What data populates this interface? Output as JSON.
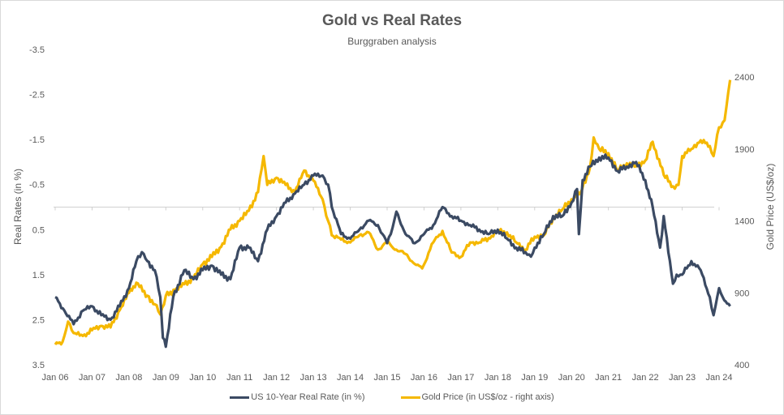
{
  "chart_data": {
    "type": "line",
    "title": "Gold vs Real Rates",
    "subtitle": "Burggraben analysis",
    "xlabel": "",
    "ylabel_left": "Real Rates (in %)",
    "ylabel_right": "Gold Price (US$/oz)",
    "x_ticks": [
      "Jan 06",
      "Jan 07",
      "Jan 08",
      "Jan 09",
      "Jan 10",
      "Jan 11",
      "Jan 12",
      "Jan 13",
      "Jan 14",
      "Jan 15",
      "Jan 16",
      "Jan 17",
      "Jan 18",
      "Jan 19",
      "Jan 20",
      "Jan 21",
      "Jan 22",
      "Jan 23",
      "Jan 24"
    ],
    "y_left_ticks": [
      "-3.5",
      "-2.5",
      "-1.5",
      "-0.5",
      "0.5",
      "1.5",
      "2.5",
      "3.5"
    ],
    "y_left_range": [
      -3.5,
      3.5
    ],
    "y_left_inverted": true,
    "y_right_ticks": [
      "2400",
      "1900",
      "1400",
      "900",
      "400"
    ],
    "y_right_range": [
      400,
      2400
    ],
    "grid": false,
    "zero_line": true,
    "legend_position": "bottom",
    "series": [
      {
        "name": "US 10-Year Real Rate (in %)",
        "axis": "left",
        "color": "#3b4a63",
        "x": [
          2006.0,
          2006.25,
          2006.5,
          2006.75,
          2007.0,
          2007.25,
          2007.5,
          2007.75,
          2008.0,
          2008.2,
          2008.35,
          2008.5,
          2008.7,
          2008.85,
          2008.92,
          2009.0,
          2009.2,
          2009.5,
          2009.75,
          2010.0,
          2010.25,
          2010.5,
          2010.75,
          2011.0,
          2011.25,
          2011.5,
          2011.75,
          2012.0,
          2012.25,
          2012.5,
          2012.75,
          2013.0,
          2013.25,
          2013.4,
          2013.5,
          2013.75,
          2014.0,
          2014.25,
          2014.5,
          2014.75,
          2015.0,
          2015.1,
          2015.25,
          2015.5,
          2015.75,
          2016.0,
          2016.25,
          2016.5,
          2016.75,
          2017.0,
          2017.25,
          2017.5,
          2017.75,
          2018.0,
          2018.25,
          2018.5,
          2018.75,
          2018.9,
          2019.0,
          2019.25,
          2019.5,
          2019.75,
          2020.0,
          2020.15,
          2020.2,
          2020.3,
          2020.5,
          2020.75,
          2021.0,
          2021.25,
          2021.5,
          2021.75,
          2022.0,
          2022.2,
          2022.4,
          2022.5,
          2022.75,
          2022.85,
          2023.0,
          2023.25,
          2023.5,
          2023.75,
          2023.85,
          2024.0,
          2024.1,
          2024.3
        ],
        "values": [
          2.0,
          2.3,
          2.6,
          2.3,
          2.2,
          2.4,
          2.5,
          2.2,
          1.8,
          1.2,
          1.0,
          1.2,
          1.4,
          2.0,
          2.9,
          3.1,
          2.0,
          1.4,
          1.6,
          1.4,
          1.3,
          1.5,
          1.6,
          0.9,
          0.9,
          1.2,
          0.5,
          0.2,
          -0.1,
          -0.3,
          -0.5,
          -0.7,
          -0.7,
          -0.5,
          0.0,
          0.6,
          0.7,
          0.5,
          0.3,
          0.4,
          0.8,
          0.6,
          0.1,
          0.6,
          0.8,
          0.6,
          0.4,
          0.0,
          0.2,
          0.3,
          0.4,
          0.5,
          0.6,
          0.5,
          0.7,
          0.9,
          1.0,
          1.1,
          0.9,
          0.6,
          0.2,
          0.2,
          -0.1,
          -0.4,
          0.6,
          -0.6,
          -0.9,
          -1.1,
          -1.1,
          -0.8,
          -0.9,
          -1.0,
          -0.6,
          0.0,
          0.9,
          0.2,
          1.7,
          1.5,
          1.5,
          1.2,
          1.4,
          2.0,
          2.4,
          1.8,
          2.0,
          2.2
        ]
      },
      {
        "name": "Gold Price (in US$/oz - right axis)",
        "axis": "right",
        "color": "#f5b800",
        "x": [
          2006.0,
          2006.2,
          2006.35,
          2006.5,
          2006.75,
          2007.0,
          2007.25,
          2007.5,
          2007.75,
          2008.0,
          2008.2,
          2008.5,
          2008.7,
          2008.85,
          2009.0,
          2009.25,
          2009.5,
          2009.75,
          2010.0,
          2010.25,
          2010.5,
          2010.75,
          2011.0,
          2011.25,
          2011.5,
          2011.65,
          2011.75,
          2012.0,
          2012.25,
          2012.5,
          2012.75,
          2013.0,
          2013.25,
          2013.4,
          2013.5,
          2013.75,
          2014.0,
          2014.25,
          2014.5,
          2014.75,
          2015.0,
          2015.25,
          2015.5,
          2015.75,
          2015.95,
          2016.25,
          2016.5,
          2016.75,
          2017.0,
          2017.25,
          2017.5,
          2017.75,
          2018.0,
          2018.25,
          2018.5,
          2018.75,
          2019.0,
          2019.25,
          2019.5,
          2019.75,
          2020.0,
          2020.25,
          2020.5,
          2020.6,
          2020.75,
          2021.0,
          2021.25,
          2021.5,
          2021.75,
          2022.0,
          2022.2,
          2022.5,
          2022.75,
          2022.9,
          2023.0,
          2023.25,
          2023.5,
          2023.75,
          2023.85,
          2024.0,
          2024.15,
          2024.3
        ],
        "values": [
          540,
          560,
          700,
          620,
          600,
          640,
          670,
          660,
          780,
          900,
          970,
          880,
          820,
          750,
          880,
          920,
          960,
          1000,
          1100,
          1150,
          1220,
          1340,
          1400,
          1470,
          1600,
          1850,
          1650,
          1700,
          1650,
          1600,
          1750,
          1680,
          1550,
          1400,
          1300,
          1270,
          1250,
          1300,
          1320,
          1200,
          1250,
          1200,
          1170,
          1100,
          1070,
          1250,
          1330,
          1180,
          1150,
          1250,
          1250,
          1280,
          1330,
          1320,
          1250,
          1200,
          1290,
          1300,
          1420,
          1480,
          1550,
          1600,
          1770,
          1980,
          1900,
          1870,
          1750,
          1800,
          1780,
          1820,
          1950,
          1720,
          1640,
          1650,
          1850,
          1900,
          1960,
          1920,
          1850,
          2050,
          2100,
          2380
        ]
      }
    ]
  },
  "legend": {
    "items": [
      {
        "label": "US 10-Year Real Rate (in %)",
        "color": "#3b4a63"
      },
      {
        "label": "Gold Price (in US$/oz - right axis)",
        "color": "#f5b800"
      }
    ]
  }
}
